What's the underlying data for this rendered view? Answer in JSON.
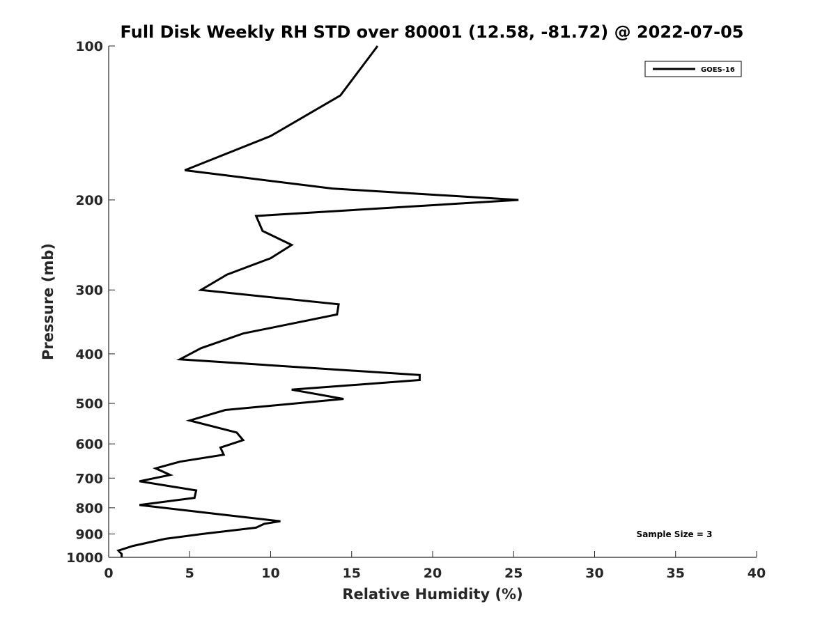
{
  "chart_data": {
    "type": "line",
    "title": "Full Disk Weekly RH STD over 80001 (12.58, -81.72) @ 2022-07-05",
    "xlabel": "Relative Humidity (%)",
    "ylabel": "Pressure (mb)",
    "xlim": [
      0,
      40
    ],
    "ylim": [
      100,
      1000
    ],
    "yscale": "log",
    "yreversed": true,
    "xticks": [
      0,
      5,
      10,
      15,
      20,
      25,
      30,
      35,
      40
    ],
    "yticks": [
      100,
      200,
      300,
      400,
      500,
      600,
      700,
      800,
      900,
      1000
    ],
    "legend": {
      "position": "top-right",
      "entries": [
        "GOES-16"
      ]
    },
    "annotation": "Sample Size = 3",
    "series": [
      {
        "name": "GOES-16",
        "color": "#000000",
        "x": [
          16.6,
          14.3,
          10.0,
          4.7,
          13.8,
          25.3,
          9.1,
          9.5,
          11.3,
          10.0,
          7.3,
          5.7,
          14.2,
          14.1,
          8.3,
          5.7,
          4.4,
          19.2,
          19.2,
          11.3,
          14.5,
          7.2,
          5.0,
          7.9,
          8.3,
          6.9,
          7.1,
          4.4,
          2.9,
          3.8,
          1.9,
          5.4,
          5.3,
          1.9,
          6.3,
          10.6,
          9.6,
          9.1,
          5.8,
          3.5,
          1.5,
          0.6,
          0.8,
          0.8
        ],
        "y": [
          100,
          125,
          150,
          175,
          190,
          200,
          215,
          230,
          245,
          260,
          280,
          300,
          320,
          335,
          365,
          390,
          410,
          440,
          450,
          470,
          490,
          515,
          540,
          570,
          590,
          610,
          630,
          650,
          670,
          690,
          710,
          740,
          765,
          790,
          820,
          850,
          860,
          875,
          900,
          920,
          950,
          970,
          985,
          1000
        ]
      }
    ]
  }
}
